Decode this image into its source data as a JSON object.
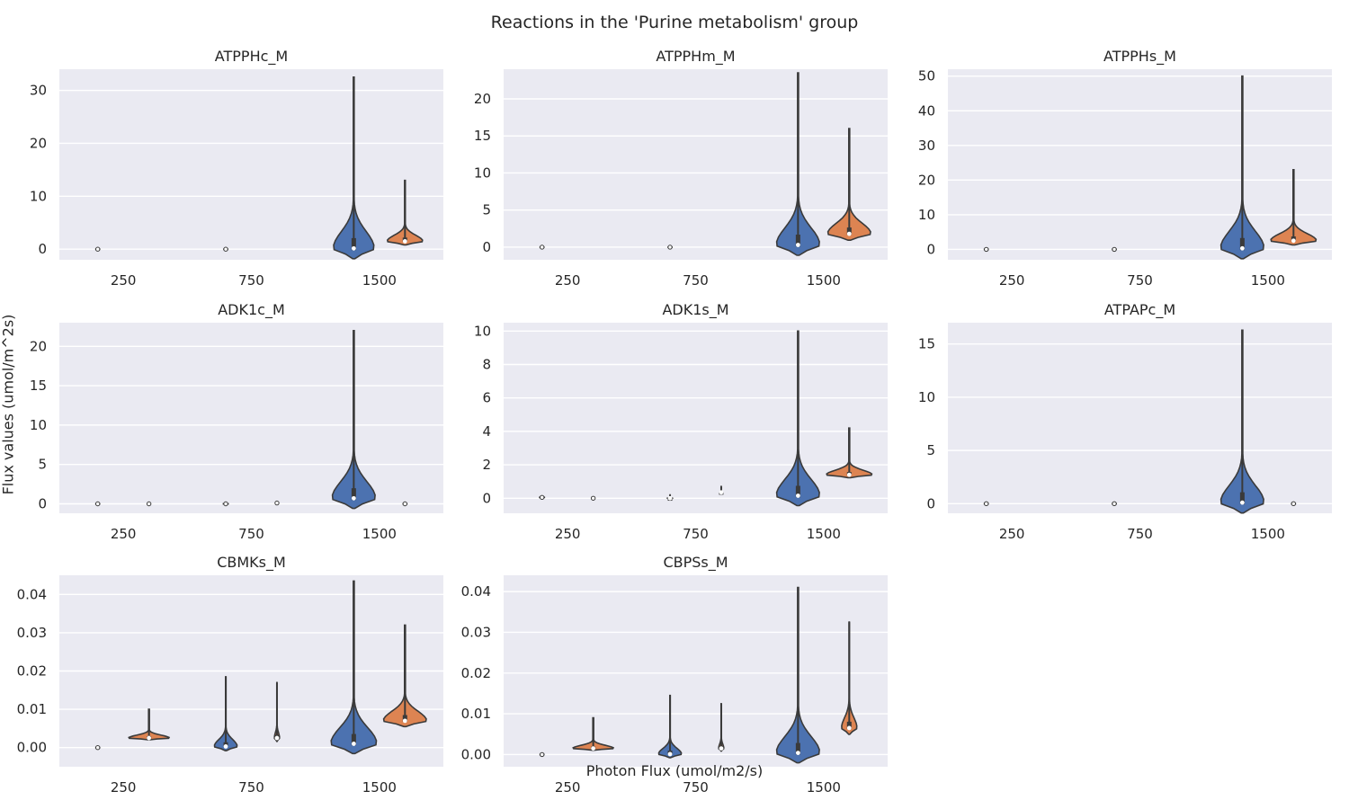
{
  "figure": {
    "title": "Reactions in the 'Purine metabolism' group",
    "xlabel": "Photon Flux (umol/m2/s)",
    "ylabel": "Flux values (umol/m^2s)"
  },
  "colors": {
    "series_a": "#4c72b0",
    "series_b": "#dd8452",
    "panel_bg": "#eaeaf2",
    "grid": "#ffffff",
    "line": "#3a3a3a"
  },
  "chart_data": [
    {
      "type": "violin",
      "title": "ATPPHc_M",
      "categories": [
        "250",
        "750",
        "1500"
      ],
      "ylim": [
        -2,
        34
      ],
      "yticks": [
        0,
        10,
        20,
        30
      ],
      "grid": true,
      "series": [
        {
          "values": [
            {
              "max": 0.05,
              "median": 0,
              "width": 0.1
            },
            {
              "max": 0.05,
              "median": 0,
              "width": 0.1
            },
            {
              "max": 32.5,
              "median": 0.15,
              "width": 0.8
            }
          ]
        },
        {
          "values": [
            {
              "max": 0,
              "median": 0,
              "width": 0
            },
            {
              "max": 0,
              "median": 0,
              "width": 0
            },
            {
              "max": 13,
              "median": 1.5,
              "width": 0.7
            }
          ]
        }
      ]
    },
    {
      "type": "violin",
      "title": "ATPPHm_M",
      "categories": [
        "250",
        "750",
        "1500"
      ],
      "ylim": [
        -1.7,
        24
      ],
      "yticks": [
        0,
        5,
        10,
        15,
        20
      ],
      "grid": true,
      "series": [
        {
          "values": [
            {
              "max": 0.05,
              "median": 0,
              "width": 0.1
            },
            {
              "max": 0.05,
              "median": 0,
              "width": 0.1
            },
            {
              "max": 23.5,
              "median": 0.3,
              "width": 0.85
            }
          ]
        },
        {
          "values": [
            {
              "max": 0,
              "median": 0,
              "width": 0
            },
            {
              "max": 0,
              "median": 0,
              "width": 0
            },
            {
              "max": 16,
              "median": 1.8,
              "width": 0.85
            }
          ]
        }
      ]
    },
    {
      "type": "violin",
      "title": "ATPPHs_M",
      "categories": [
        "250",
        "750",
        "1500"
      ],
      "ylim": [
        -3,
        52
      ],
      "yticks": [
        0,
        10,
        20,
        30,
        40,
        50
      ],
      "grid": true,
      "series": [
        {
          "values": [
            {
              "max": 0.05,
              "median": 0,
              "width": 0.1
            },
            {
              "max": 0.05,
              "median": 0,
              "width": 0.1
            },
            {
              "max": 50,
              "median": 0.3,
              "width": 0.85
            }
          ]
        },
        {
          "values": [
            {
              "max": 0,
              "median": 0,
              "width": 0
            },
            {
              "max": 0,
              "median": 0,
              "width": 0
            },
            {
              "max": 23,
              "median": 2.5,
              "width": 0.9
            }
          ]
        }
      ]
    },
    {
      "type": "violin",
      "title": "ADK1c_M",
      "categories": [
        "250",
        "750",
        "1500"
      ],
      "ylim": [
        -1.2,
        23
      ],
      "yticks": [
        0,
        5,
        10,
        15,
        20
      ],
      "grid": true,
      "series": [
        {
          "values": [
            {
              "max": 0.05,
              "median": 0,
              "width": 0.1
            },
            {
              "max": 0.1,
              "median": 0,
              "width": 0.12
            },
            {
              "max": 22,
              "median": 0.7,
              "width": 0.85
            }
          ]
        },
        {
          "values": [
            {
              "max": 0.05,
              "median": 0,
              "width": 0.02
            },
            {
              "max": 0.3,
              "median": 0.1,
              "width": 0.07
            },
            {
              "max": 0.05,
              "median": 0,
              "width": 0.1
            }
          ]
        }
      ]
    },
    {
      "type": "violin",
      "title": "ADK1s_M",
      "categories": [
        "250",
        "750",
        "1500"
      ],
      "ylim": [
        -0.9,
        10.5
      ],
      "yticks": [
        0,
        2,
        4,
        6,
        8,
        10
      ],
      "grid": true,
      "series": [
        {
          "values": [
            {
              "max": 0.1,
              "median": 0.05,
              "width": 0.12
            },
            {
              "max": 0.2,
              "median": 0,
              "width": 0.1
            },
            {
              "max": 10,
              "median": 0.15,
              "width": 0.85
            }
          ]
        },
        {
          "values": [
            {
              "max": 0.05,
              "median": 0,
              "width": 0.02
            },
            {
              "max": 0.7,
              "median": 0.35,
              "width": 0.04
            },
            {
              "max": 4.2,
              "median": 1.4,
              "width": 0.9
            }
          ]
        }
      ]
    },
    {
      "type": "violin",
      "title": "ATPAPc_M",
      "categories": [
        "250",
        "750",
        "1500"
      ],
      "ylim": [
        -0.9,
        17
      ],
      "yticks": [
        0,
        5,
        10,
        15
      ],
      "grid": true,
      "series": [
        {
          "values": [
            {
              "max": 0.05,
              "median": 0,
              "width": 0.1
            },
            {
              "max": 0.05,
              "median": 0,
              "width": 0.1
            },
            {
              "max": 16.3,
              "median": 0.1,
              "width": 0.85
            }
          ]
        },
        {
          "values": [
            {
              "max": 0,
              "median": 0,
              "width": 0
            },
            {
              "max": 0,
              "median": 0,
              "width": 0
            },
            {
              "max": 0.05,
              "median": 0,
              "width": 0.1
            }
          ]
        }
      ]
    },
    {
      "type": "violin",
      "title": "CBMKs_M",
      "categories": [
        "250",
        "750",
        "1500"
      ],
      "ylim": [
        -0.005,
        0.045
      ],
      "yticks": [
        0.0,
        0.01,
        0.02,
        0.03,
        0.04
      ],
      "yticklabels": [
        "0.00",
        "0.01",
        "0.02",
        "0.03",
        "0.04"
      ],
      "grid": true,
      "series": [
        {
          "values": [
            {
              "max": 0.0002,
              "median": 0,
              "width": 0.1
            },
            {
              "max": 0.0185,
              "median": 0.0003,
              "width": 0.45
            },
            {
              "max": 0.0435,
              "median": 0.001,
              "width": 0.9
            }
          ]
        },
        {
          "values": [
            {
              "max": 0.01,
              "median": 0.0025,
              "width": 0.8
            },
            {
              "max": 0.017,
              "median": 0.0025,
              "width": 0.1
            },
            {
              "max": 0.032,
              "median": 0.007,
              "width": 0.85
            }
          ]
        }
      ]
    },
    {
      "type": "violin",
      "title": "CBPSs_M",
      "categories": [
        "250",
        "750",
        "1500"
      ],
      "ylim": [
        -0.003,
        0.044
      ],
      "yticks": [
        0.0,
        0.01,
        0.02,
        0.03,
        0.04
      ],
      "yticklabels": [
        "0.00",
        "0.01",
        "0.02",
        "0.03",
        "0.04"
      ],
      "grid": true,
      "series": [
        {
          "values": [
            {
              "max": 0.0002,
              "median": 0,
              "width": 0.1
            },
            {
              "max": 0.0145,
              "median": 0.0001,
              "width": 0.45
            },
            {
              "max": 0.041,
              "median": 0.0004,
              "width": 0.85
            }
          ]
        },
        {
          "values": [
            {
              "max": 0.009,
              "median": 0.0015,
              "width": 0.8
            },
            {
              "max": 0.0125,
              "median": 0.0015,
              "width": 0.1
            },
            {
              "max": 0.0325,
              "median": 0.0065,
              "width": 0.3
            }
          ]
        }
      ]
    }
  ]
}
